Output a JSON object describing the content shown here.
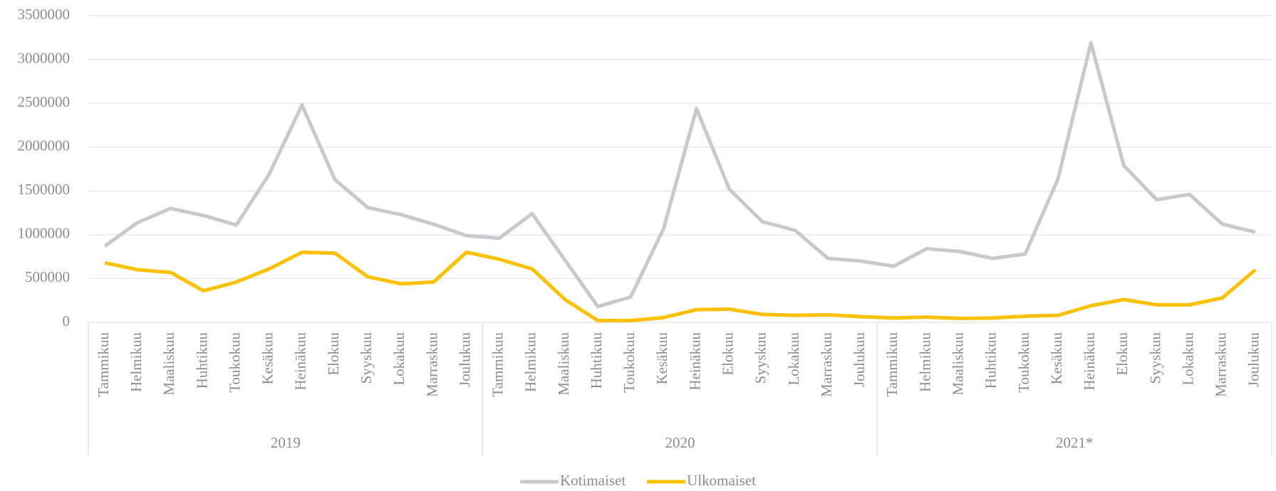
{
  "chart_data": {
    "type": "line",
    "categories": [
      "Tammikuu",
      "Helmikuu",
      "Maaliskuu",
      "Huhtikuu",
      "Toukokuu",
      "Kesäkuu",
      "Heinäkuu",
      "Elokuu",
      "Syyskuu",
      "Lokakuu",
      "Marraskuu",
      "Joulukuu",
      "Tammikuu",
      "Helmikuu",
      "Maaliskuu",
      "Huhtikuu",
      "Toukokuu",
      "Kesäkuu",
      "Heinäkuu",
      "Elokuu",
      "Syyskuu",
      "Lokakuu",
      "Marraskuu",
      "Joulukuu",
      "Tammikuu",
      "Helmikuu",
      "Maaliskuu",
      "Huhtikuu",
      "Toukokuu",
      "Kesäkuu",
      "Heinäkuu",
      "Elokuu",
      "Syyskuu",
      "Lokakuu",
      "Marraskuu",
      "Joulukuu"
    ],
    "years": [
      "2019",
      "2020",
      "2021*"
    ],
    "series": [
      {
        "name": "Kotimaiset",
        "color": "#c9c9cd",
        "values": [
          870000,
          1140000,
          1300000,
          1220000,
          1110000,
          1690000,
          2480000,
          1630000,
          1310000,
          1230000,
          1120000,
          990000,
          960000,
          1240000,
          710000,
          180000,
          290000,
          1070000,
          2440000,
          1520000,
          1150000,
          1050000,
          730000,
          700000,
          640000,
          840000,
          810000,
          730000,
          780000,
          1640000,
          3190000,
          1790000,
          1400000,
          1460000,
          1120000,
          1030000
        ]
      },
      {
        "name": "Ulkomaiset",
        "color": "#ffc000",
        "values": [
          680000,
          600000,
          570000,
          360000,
          460000,
          610000,
          800000,
          790000,
          520000,
          440000,
          460000,
          800000,
          720000,
          610000,
          260000,
          20000,
          20000,
          55000,
          145000,
          150000,
          90000,
          80000,
          85000,
          65000,
          50000,
          60000,
          45000,
          50000,
          70000,
          80000,
          190000,
          260000,
          200000,
          200000,
          280000,
          600000
        ]
      }
    ],
    "ylim": [
      0,
      3500000
    ],
    "yticks": [
      0,
      500000,
      1000000,
      1500000,
      2000000,
      2500000,
      3000000,
      3500000
    ],
    "grid": true,
    "legend": "bottom"
  }
}
